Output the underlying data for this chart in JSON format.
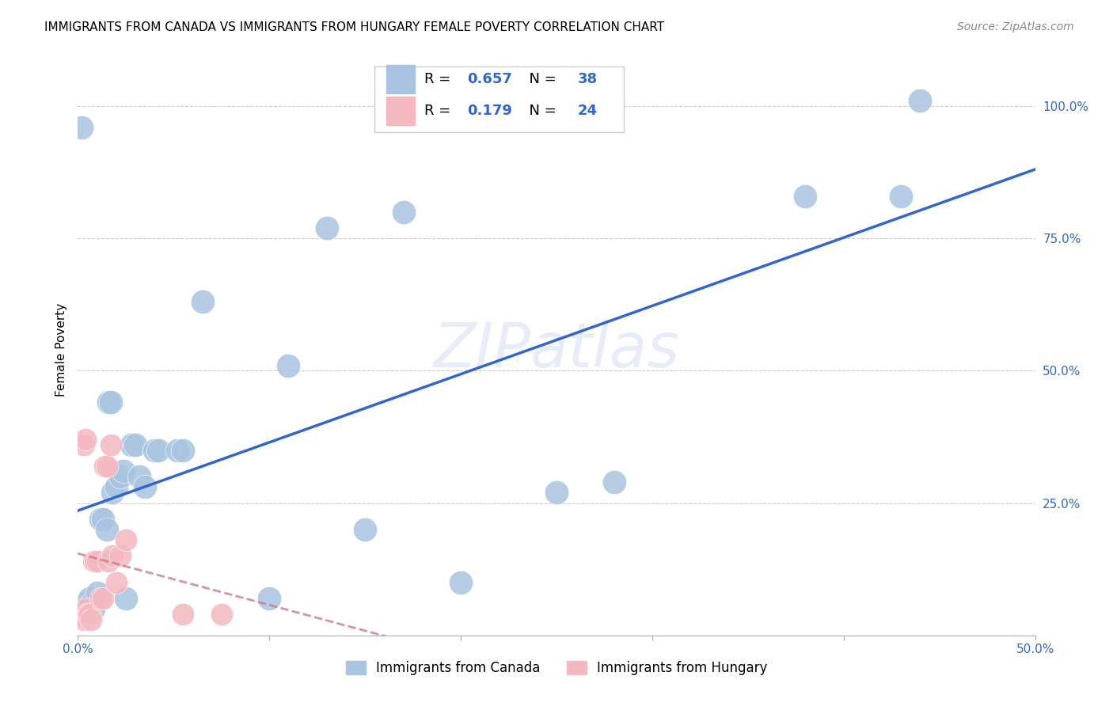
{
  "title": "IMMIGRANTS FROM CANADA VS IMMIGRANTS FROM HUNGARY FEMALE POVERTY CORRELATION CHART",
  "source": "Source: ZipAtlas.com",
  "ylabel": "Female Poverty",
  "xlim": [
    0.0,
    0.5
  ],
  "ylim": [
    0.0,
    1.08
  ],
  "watermark": "ZIPatlas",
  "canada_R": 0.657,
  "canada_N": 38,
  "hungary_R": 0.179,
  "hungary_N": 24,
  "canada_color": "#a8c4e0",
  "hungary_color": "#f4b8c1",
  "canada_line_color": "#3366cc",
  "hungary_line_color": "#cc7788",
  "canada_scatter": [
    [
      0.002,
      0.96
    ],
    [
      0.003,
      0.05
    ],
    [
      0.004,
      0.06
    ],
    [
      0.005,
      0.05
    ],
    [
      0.006,
      0.07
    ],
    [
      0.007,
      0.06
    ],
    [
      0.008,
      0.05
    ],
    [
      0.01,
      0.08
    ],
    [
      0.012,
      0.22
    ],
    [
      0.013,
      0.22
    ],
    [
      0.015,
      0.2
    ],
    [
      0.016,
      0.44
    ],
    [
      0.017,
      0.44
    ],
    [
      0.018,
      0.27
    ],
    [
      0.02,
      0.28
    ],
    [
      0.022,
      0.3
    ],
    [
      0.024,
      0.31
    ],
    [
      0.025,
      0.07
    ],
    [
      0.028,
      0.36
    ],
    [
      0.03,
      0.36
    ],
    [
      0.032,
      0.3
    ],
    [
      0.035,
      0.28
    ],
    [
      0.04,
      0.35
    ],
    [
      0.042,
      0.35
    ],
    [
      0.052,
      0.35
    ],
    [
      0.055,
      0.35
    ],
    [
      0.065,
      0.63
    ],
    [
      0.1,
      0.07
    ],
    [
      0.11,
      0.51
    ],
    [
      0.13,
      0.77
    ],
    [
      0.15,
      0.2
    ],
    [
      0.17,
      0.8
    ],
    [
      0.2,
      0.1
    ],
    [
      0.25,
      0.27
    ],
    [
      0.28,
      0.29
    ],
    [
      0.38,
      0.83
    ],
    [
      0.43,
      0.83
    ],
    [
      0.44,
      1.01
    ]
  ],
  "hungary_scatter": [
    [
      0.001,
      0.04
    ],
    [
      0.002,
      0.04
    ],
    [
      0.003,
      0.03
    ],
    [
      0.004,
      0.05
    ],
    [
      0.005,
      0.04
    ],
    [
      0.006,
      0.04
    ],
    [
      0.007,
      0.03
    ],
    [
      0.008,
      0.14
    ],
    [
      0.009,
      0.14
    ],
    [
      0.01,
      0.14
    ],
    [
      0.012,
      0.07
    ],
    [
      0.013,
      0.07
    ],
    [
      0.003,
      0.36
    ],
    [
      0.014,
      0.32
    ],
    [
      0.015,
      0.32
    ],
    [
      0.016,
      0.14
    ],
    [
      0.017,
      0.36
    ],
    [
      0.018,
      0.15
    ],
    [
      0.02,
      0.1
    ],
    [
      0.022,
      0.15
    ],
    [
      0.025,
      0.18
    ],
    [
      0.055,
      0.04
    ],
    [
      0.075,
      0.04
    ],
    [
      0.004,
      0.37
    ]
  ],
  "legend_canada_label": "Immigrants from Canada",
  "legend_hungary_label": "Immigrants from Hungary"
}
